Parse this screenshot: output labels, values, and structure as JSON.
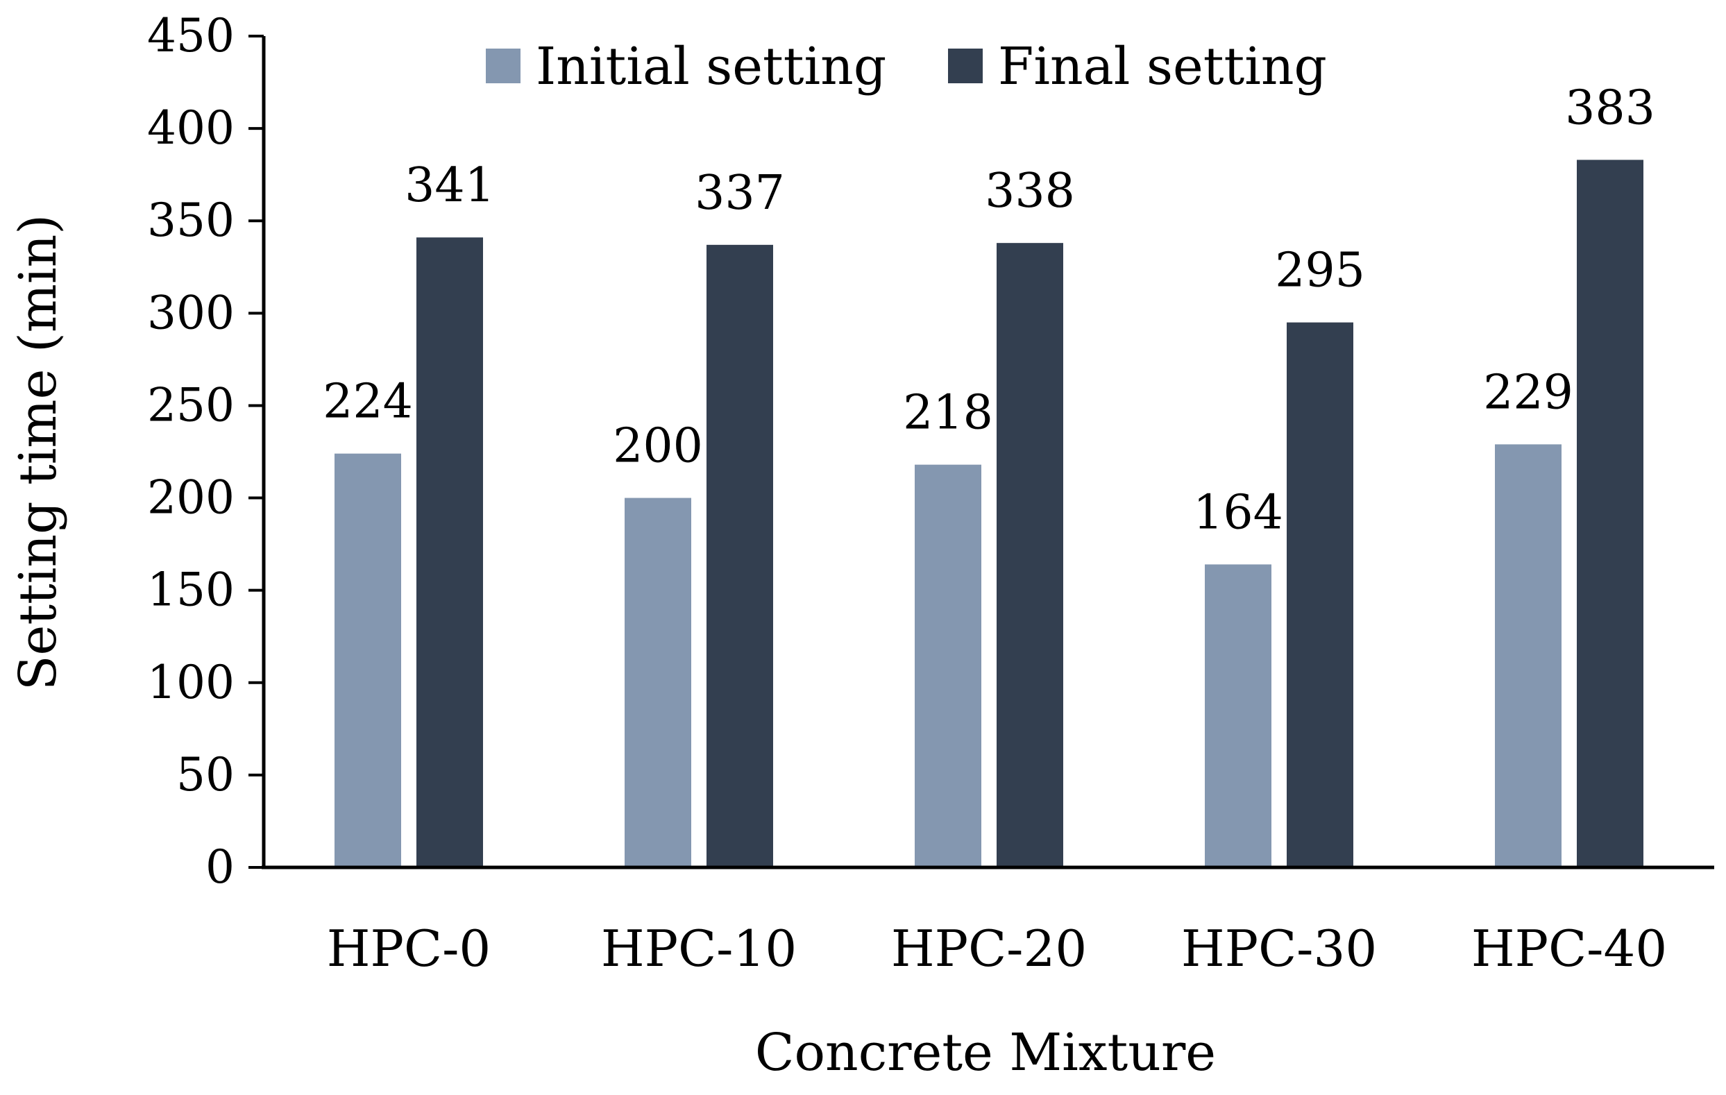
{
  "chart_data": {
    "type": "bar",
    "title": "",
    "xlabel": "Concrete Mixture",
    "ylabel": "Setting time (min)",
    "categories": [
      "HPC-0",
      "HPC-10",
      "HPC-20",
      "HPC-30",
      "HPC-40"
    ],
    "series": [
      {
        "name": "Initial setting",
        "color": "#8497b0",
        "values": [
          224,
          200,
          218,
          164,
          229
        ]
      },
      {
        "name": "Final setting",
        "color": "#333f50",
        "values": [
          341,
          337,
          338,
          295,
          383
        ]
      }
    ],
    "ylim": [
      0,
      450
    ],
    "yticks": [
      "0",
      "50",
      "100",
      "150",
      "200",
      "250",
      "300",
      "350",
      "400",
      "450"
    ],
    "grid": false,
    "legend_position": "top-center",
    "data_labels": true
  }
}
